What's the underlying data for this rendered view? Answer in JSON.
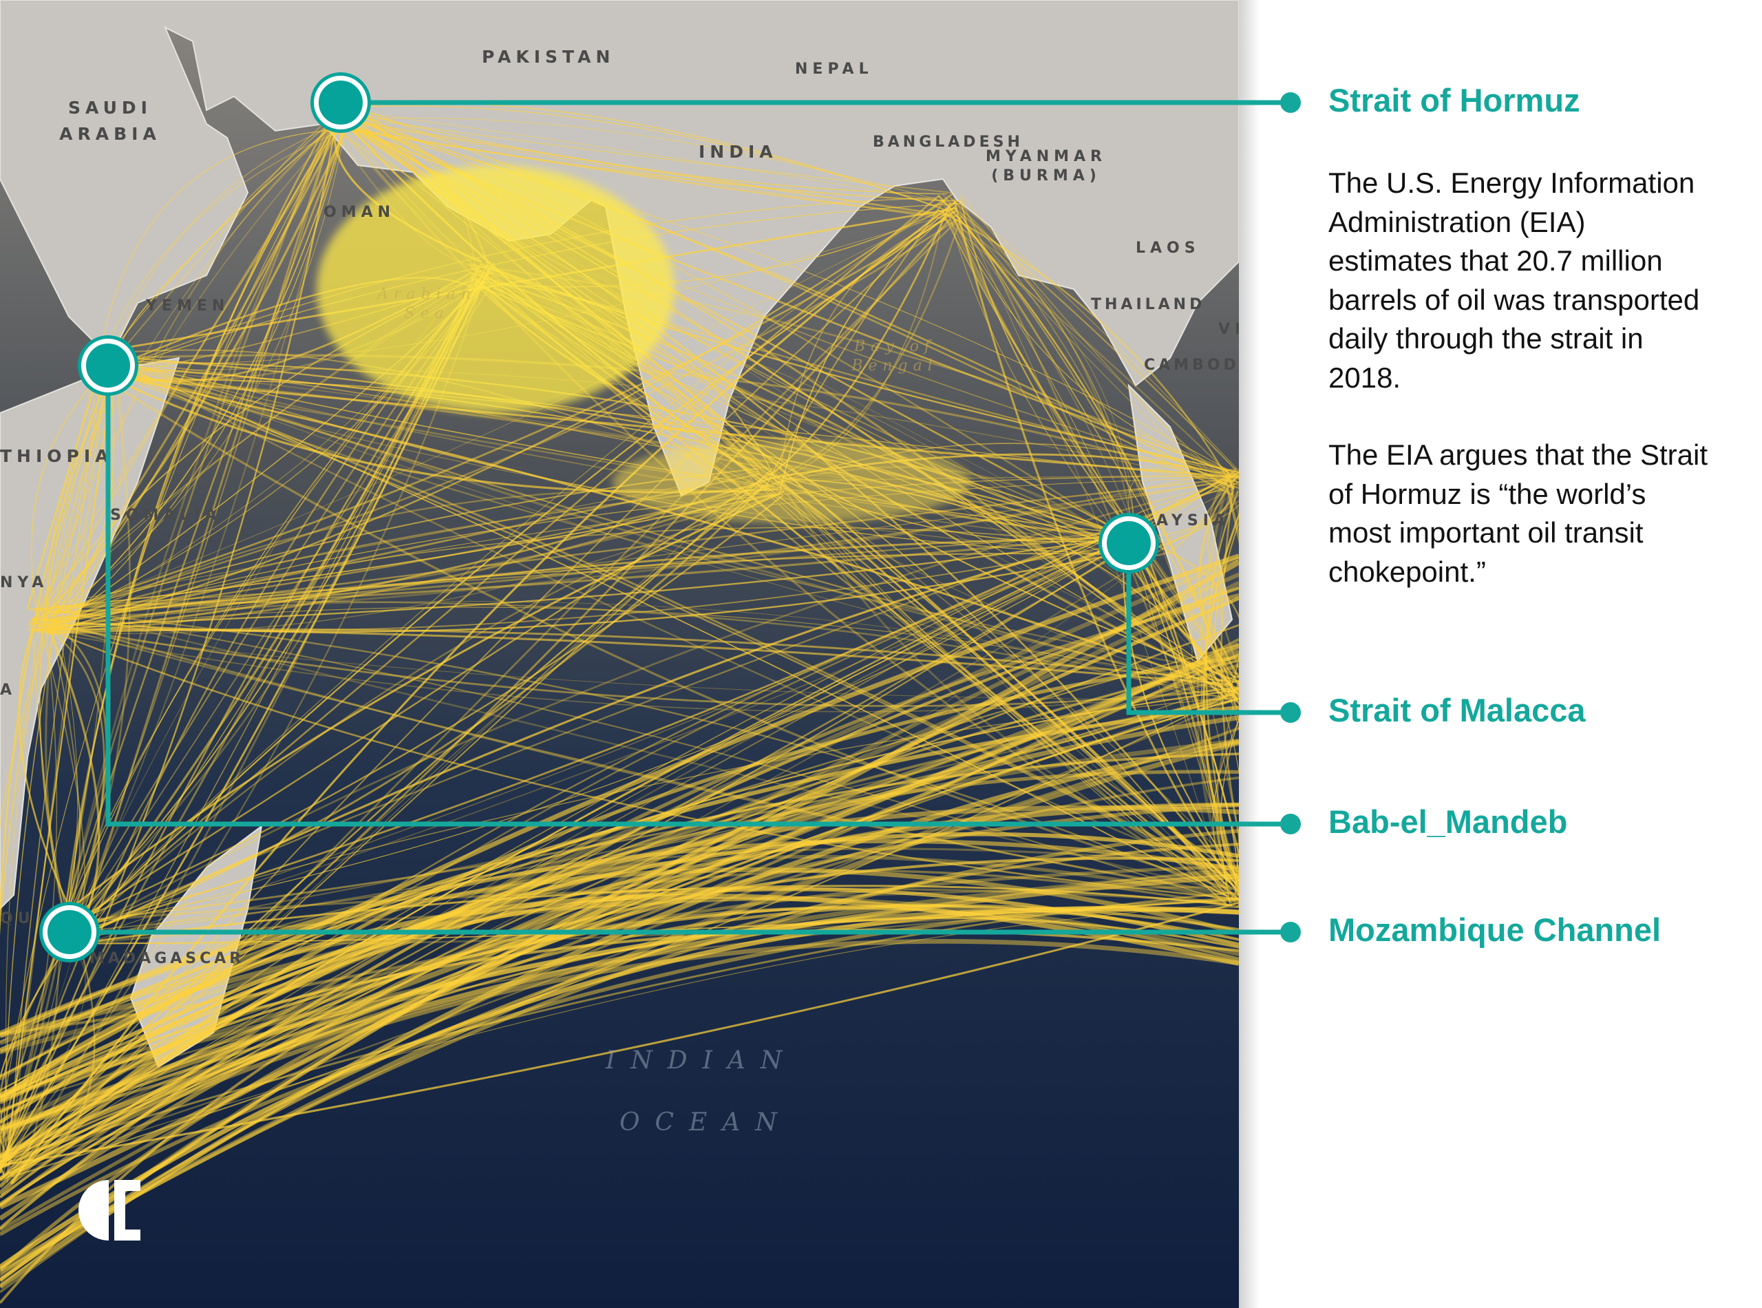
{
  "map": {
    "countries": [
      "PAKISTAN",
      "NEPAL",
      "SAUDI ARABIA",
      "INDIA",
      "BANGLADESH",
      "MYANMAR (BURMA)",
      "OMAN",
      "LAOS",
      "YEMEN",
      "THAILAND",
      "VI",
      "CAMBOD",
      "THIOPIA",
      "SOMALIA",
      "AYSIA",
      "NYA",
      "A",
      "QU",
      "MADAGASCAR"
    ],
    "seas": [
      "Arabian Sea",
      "Bay of Bengal"
    ],
    "ocean": [
      "INDIAN",
      "OCEAN"
    ],
    "colors": {
      "land": "#c9c6c2",
      "ocean_top": "#6b6a66",
      "ocean_bottom": "#10203f",
      "routes": "#ffd23a",
      "accent": "#05a39a"
    }
  },
  "chokepoints": [
    {
      "name": "Strait of Hormuz"
    },
    {
      "name": "Strait of Malacca"
    },
    {
      "name": "Bab-el_Mandeb"
    },
    {
      "name": "Mozambique Channel"
    }
  ],
  "description": {
    "paragraph1": "The U.S. Energy Information Administration (EIA) estimates that 20.7 million barrels of oil was transported daily through the strait in 2018.",
    "paragraph2": "The EIA argues that the Strait of Hormuz is “the world’s most important oil transit chokepoint.”"
  },
  "logo": {
    "icon": "half-circle-c-logo"
  }
}
